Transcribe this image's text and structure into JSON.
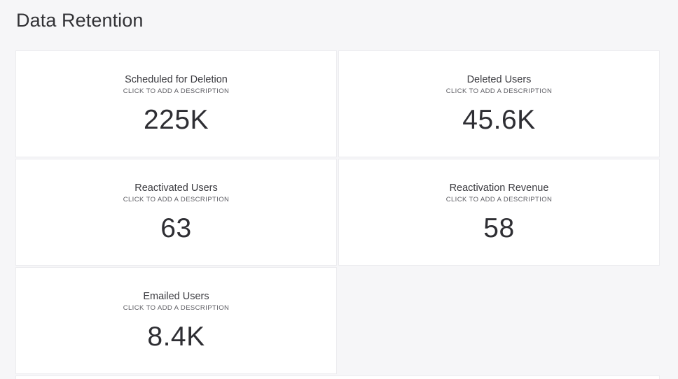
{
  "page": {
    "title": "Data Retention"
  },
  "tiles": [
    {
      "title": "Scheduled for Deletion",
      "description": "CLICK TO ADD A DESCRIPTION",
      "value": "225K"
    },
    {
      "title": "Deleted Users",
      "description": "CLICK TO ADD A DESCRIPTION",
      "value": "45.6K"
    },
    {
      "title": "Reactivated Users",
      "description": "CLICK TO ADD A DESCRIPTION",
      "value": "63"
    },
    {
      "title": "Reactivation Revenue",
      "description": "CLICK TO ADD A DESCRIPTION",
      "value": "58"
    },
    {
      "title": "Emailed Users",
      "description": "CLICK TO ADD A DESCRIPTION",
      "value": "8.4K"
    }
  ],
  "colors": {
    "background": "#f6f6f8",
    "tile": "#ffffff",
    "text": "#2f2f33"
  }
}
